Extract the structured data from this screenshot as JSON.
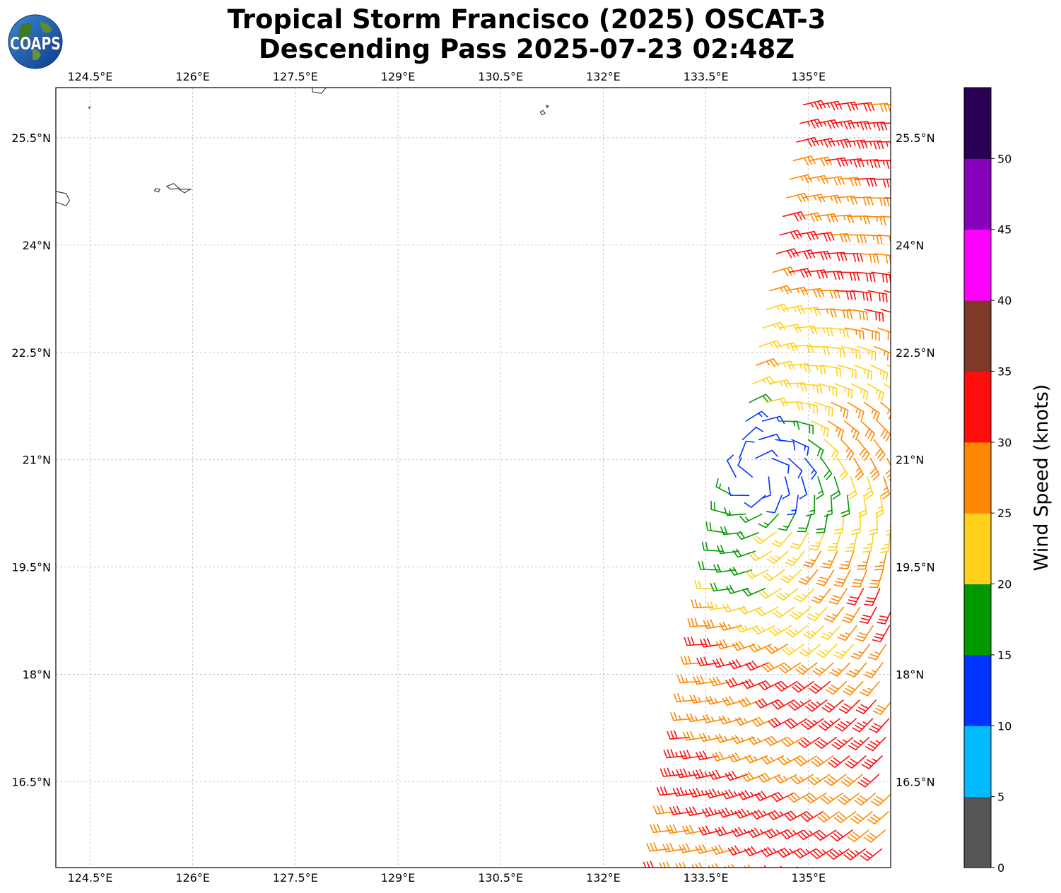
{
  "title": {
    "line1": "Tropical Storm Francisco (2025) OSCAT-3",
    "line2": "Descending Pass 2025-07-23 02:48Z"
  },
  "logo": {
    "text": "COAPS"
  },
  "map": {
    "lon_range": [
      124.0,
      136.2
    ],
    "lat_range": [
      15.3,
      26.2
    ],
    "lon_ticks": [
      {
        "value": 124.5,
        "label": "124.5°E"
      },
      {
        "value": 126.0,
        "label": "126°E"
      },
      {
        "value": 127.5,
        "label": "127.5°E"
      },
      {
        "value": 129.0,
        "label": "129°E"
      },
      {
        "value": 130.5,
        "label": "130.5°E"
      },
      {
        "value": 132.0,
        "label": "132°E"
      },
      {
        "value": 133.5,
        "label": "133.5°E"
      },
      {
        "value": 135.0,
        "label": "135°E"
      }
    ],
    "lat_ticks": [
      {
        "value": 25.5,
        "label": "25.5°N"
      },
      {
        "value": 24.0,
        "label": "24°N"
      },
      {
        "value": 22.5,
        "label": "22.5°N"
      },
      {
        "value": 21.0,
        "label": "21°N"
      },
      {
        "value": 19.5,
        "label": "19.5°N"
      },
      {
        "value": 18.0,
        "label": "18°N"
      },
      {
        "value": 16.5,
        "label": "16.5°N"
      }
    ],
    "gridlines": true,
    "coastline_color": "#333333",
    "islands": [
      [
        [
          124.0,
          24.6
        ],
        [
          124.15,
          24.55
        ],
        [
          124.2,
          24.62
        ],
        [
          124.15,
          24.72
        ],
        [
          124.0,
          24.75
        ]
      ],
      [
        [
          125.62,
          24.82
        ],
        [
          125.68,
          24.78
        ],
        [
          125.78,
          24.79
        ],
        [
          125.88,
          24.73
        ],
        [
          125.97,
          24.78
        ],
        [
          125.82,
          24.78
        ],
        [
          125.72,
          24.86
        ]
      ],
      [
        [
          125.44,
          24.76
        ],
        [
          125.5,
          24.74
        ],
        [
          125.52,
          24.78
        ],
        [
          125.46,
          24.79
        ]
      ],
      [
        [
          127.75,
          26.14
        ],
        [
          127.88,
          26.12
        ],
        [
          127.95,
          26.2
        ],
        [
          127.75,
          26.2
        ]
      ],
      [
        [
          131.1,
          25.82
        ],
        [
          131.15,
          25.84
        ],
        [
          131.12,
          25.88
        ],
        [
          131.08,
          25.86
        ]
      ],
      [
        [
          131.18,
          25.92
        ],
        [
          131.2,
          25.94
        ],
        [
          131.17,
          25.95
        ]
      ],
      [
        [
          124.48,
          25.92
        ],
        [
          124.5,
          25.93
        ],
        [
          124.49,
          25.91
        ]
      ]
    ]
  },
  "colorbar": {
    "label": "Wind Speed (knots)",
    "min": 0,
    "max": 55,
    "bins": [
      {
        "lo": 0,
        "hi": 5,
        "color": "#555555"
      },
      {
        "lo": 5,
        "hi": 10,
        "color": "#00bbff"
      },
      {
        "lo": 10,
        "hi": 15,
        "color": "#0033ff"
      },
      {
        "lo": 15,
        "hi": 20,
        "color": "#009900"
      },
      {
        "lo": 20,
        "hi": 25,
        "color": "#ffd11a"
      },
      {
        "lo": 25,
        "hi": 30,
        "color": "#ff8800"
      },
      {
        "lo": 30,
        "hi": 35,
        "color": "#ff0d0d"
      },
      {
        "lo": 35,
        "hi": 40,
        "color": "#7f3a27"
      },
      {
        "lo": 40,
        "hi": 45,
        "color": "#ff00ff"
      },
      {
        "lo": 45,
        "hi": 50,
        "color": "#8800bb"
      },
      {
        "lo": 50,
        "hi": 55,
        "color": "#2a0055"
      }
    ],
    "ticks": [
      {
        "value": 0,
        "label": "0"
      },
      {
        "value": 5,
        "label": "5"
      },
      {
        "value": 10,
        "label": "10"
      },
      {
        "value": 15,
        "label": "15"
      },
      {
        "value": 20,
        "label": "20"
      },
      {
        "value": 25,
        "label": "25"
      },
      {
        "value": 30,
        "label": "30"
      },
      {
        "value": 35,
        "label": "35"
      },
      {
        "value": 40,
        "label": "40"
      },
      {
        "value": 45,
        "label": "45"
      },
      {
        "value": 50,
        "label": "50"
      }
    ]
  },
  "swath": {
    "lat_start": 15.3,
    "lat_end": 26.0,
    "lat_step": 0.26,
    "west_edge_at_lat_start": 132.9,
    "west_edge_slope_deg_per_deg_lat": 0.19,
    "west_edge_max": 135.0,
    "east_limit": 136.2,
    "lon_step": 0.24
  }
}
